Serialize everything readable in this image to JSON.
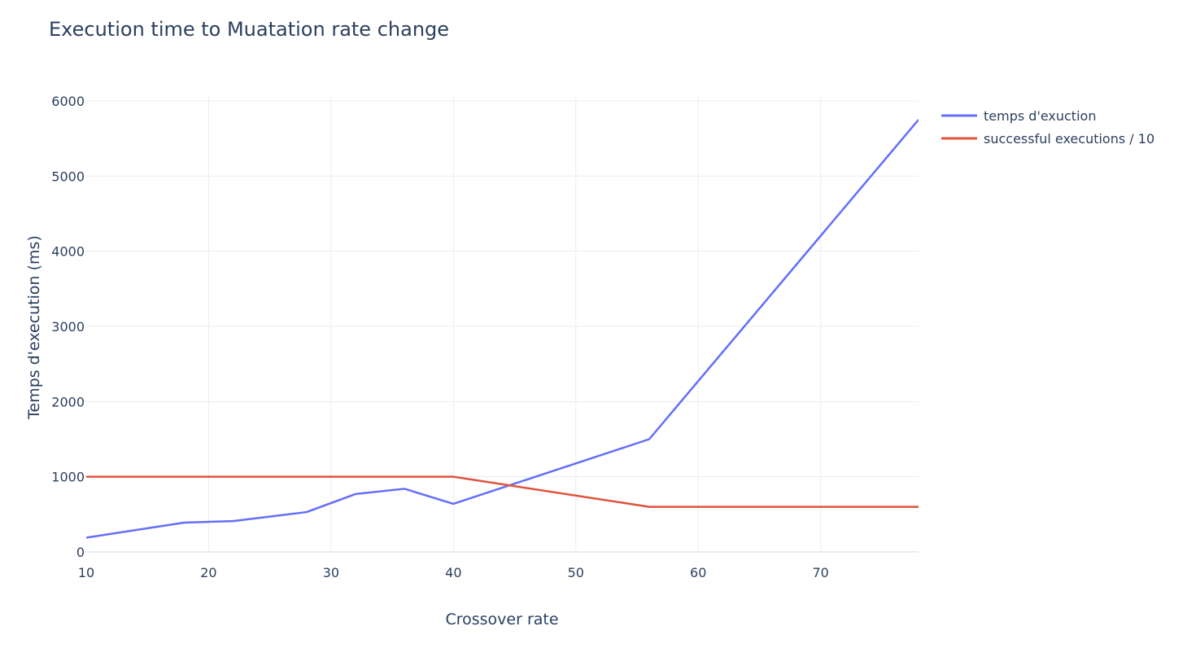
{
  "chart_data": {
    "type": "line",
    "title": "Execution time to Muatation rate change",
    "xlabel": "Crossover rate",
    "ylabel": "Temps d'execution (ms)",
    "xlim": [
      10,
      78
    ],
    "ylim": [
      0,
      6000
    ],
    "x_ticks": [
      10,
      20,
      30,
      40,
      50,
      60,
      70
    ],
    "y_ticks": [
      0,
      1000,
      2000,
      3000,
      4000,
      5000,
      6000
    ],
    "grid": true,
    "legend_position": "top-right",
    "series": [
      {
        "name": "temps d'exuction",
        "color": "#636efa",
        "points": [
          [
            10,
            190
          ],
          [
            18,
            390
          ],
          [
            22,
            410
          ],
          [
            28,
            530
          ],
          [
            32,
            770
          ],
          [
            36,
            840
          ],
          [
            40,
            640
          ],
          [
            56,
            1500
          ],
          [
            78,
            5750
          ]
        ]
      },
      {
        "name": "successful executions / 10",
        "color": "#e0533c",
        "points": [
          [
            10,
            1000
          ],
          [
            40,
            1000
          ],
          [
            56,
            600
          ],
          [
            78,
            600
          ]
        ]
      }
    ]
  },
  "colors": {
    "grid": "#e9edf3",
    "text": "#2a3f5f",
    "background": "#ffffff"
  }
}
